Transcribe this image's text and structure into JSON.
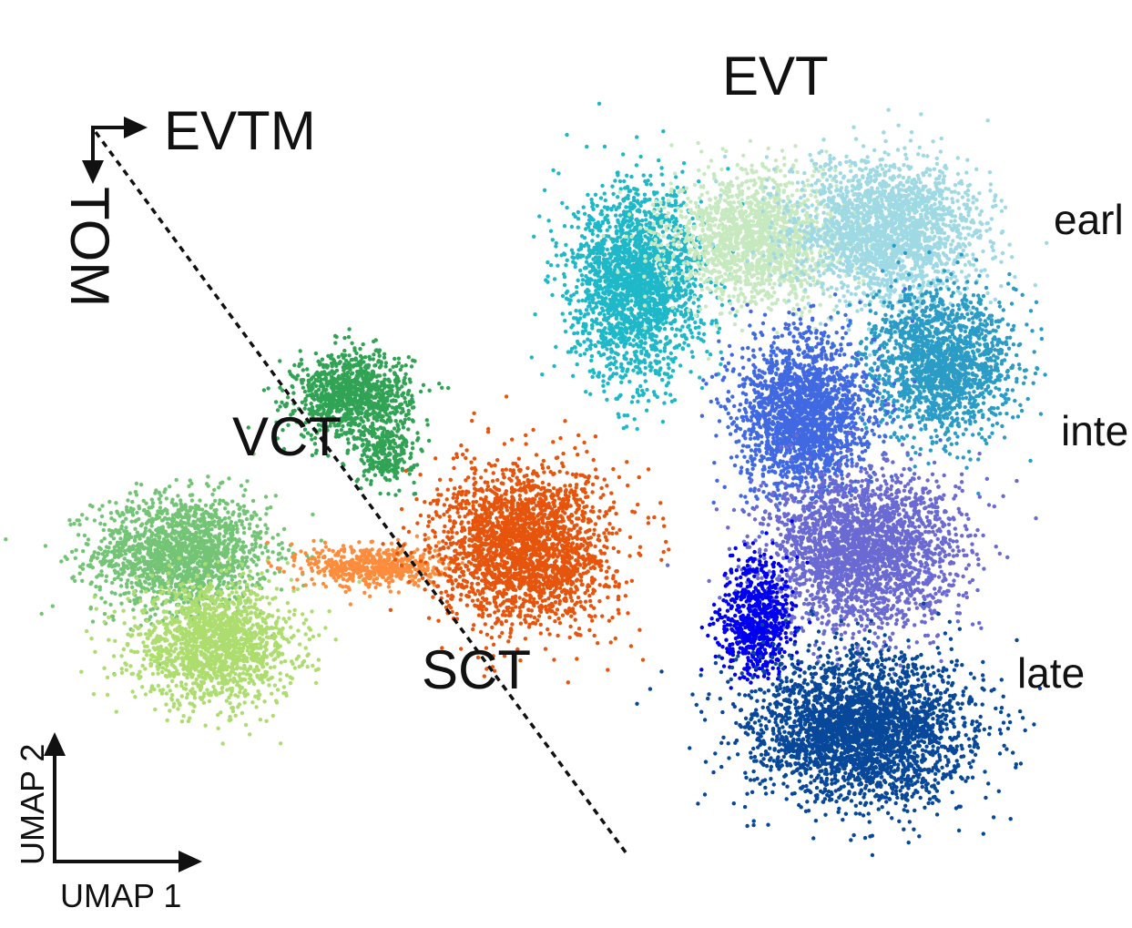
{
  "chart_data": {
    "type": "scatter",
    "xlabel": "UMAP 1",
    "ylabel": "UMAP 2",
    "cluster_labels": {
      "evt": "EVT",
      "vct": "VCT",
      "sct": "SCT",
      "early": "earl",
      "intermediate": "inte",
      "late": "late"
    },
    "trajectory_arrows": {
      "horizontal": "EVTM",
      "vertical": "TOM"
    },
    "grid": false,
    "legend": "none",
    "clusters": [
      {
        "color": "#74c476",
        "cx": -3.3,
        "cy": -0.6,
        "sx": 1.2,
        "sy": 0.8,
        "n": 1700
      },
      {
        "color": "#addd6e",
        "cx": -2.8,
        "cy": -2.0,
        "sx": 1.1,
        "sy": 0.8,
        "n": 1600
      },
      {
        "color": "#31a354",
        "cx": -0.7,
        "cy": 1.8,
        "sx": 0.8,
        "sy": 0.6,
        "n": 1100
      },
      {
        "color": "#31a354",
        "cx": -0.2,
        "cy": 0.9,
        "sx": 0.4,
        "sy": 0.4,
        "n": 250
      },
      {
        "color": "#fd8d3c",
        "cx": -0.4,
        "cy": -0.8,
        "sx": 0.9,
        "sy": 0.3,
        "n": 550
      },
      {
        "color": "#e6550d",
        "cx": 1.9,
        "cy": -0.5,
        "sx": 1.2,
        "sy": 1.1,
        "n": 2400
      },
      {
        "color": "#1fb8c9",
        "cx": 3.6,
        "cy": 3.5,
        "sx": 0.9,
        "sy": 1.3,
        "n": 2200
      },
      {
        "color": "#c7e9c0",
        "cx": 5.4,
        "cy": 4.2,
        "sx": 1.2,
        "sy": 0.9,
        "n": 1600
      },
      {
        "color": "#9ed9e4",
        "cx": 7.4,
        "cy": 4.3,
        "sx": 1.3,
        "sy": 1.0,
        "n": 2100
      },
      {
        "color": "#2b9cc6",
        "cx": 8.2,
        "cy": 2.3,
        "sx": 1.0,
        "sy": 1.0,
        "n": 1700
      },
      {
        "color": "#4169e1",
        "cx": 6.1,
        "cy": 1.5,
        "sx": 0.9,
        "sy": 1.1,
        "n": 2100
      },
      {
        "color": "#6a6ad2",
        "cx": 7.0,
        "cy": -0.6,
        "sx": 1.3,
        "sy": 1.1,
        "n": 2500
      },
      {
        "color": "#0000ee",
        "cx": 5.4,
        "cy": -1.6,
        "sx": 0.5,
        "sy": 0.8,
        "n": 700
      },
      {
        "color": "#08489a",
        "cx": 7.0,
        "cy": -3.3,
        "sx": 1.5,
        "sy": 1.0,
        "n": 3000
      }
    ],
    "xlim": [
      -5.5,
      10.5
    ],
    "ylim": [
      -5.5,
      7.0
    ]
  }
}
